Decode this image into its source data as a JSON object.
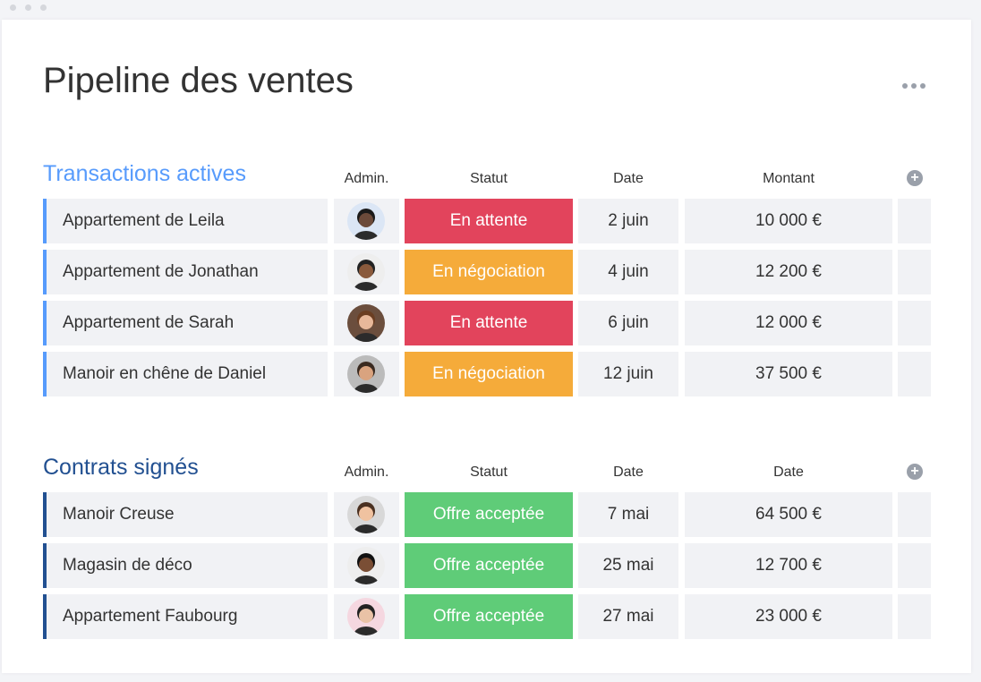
{
  "title": "Pipeline des ventes",
  "groups": [
    {
      "name": "Transactions actives",
      "color": "#579bfc",
      "columns": [
        "Admin.",
        "Statut",
        "Date",
        "Montant"
      ],
      "rows": [
        {
          "name": "Appartement de Leila",
          "status": "En attente",
          "status_color": "#e2445c",
          "date": "2 juin",
          "amount": "10 000 €"
        },
        {
          "name": "Appartement de Jonathan",
          "status": "En négociation",
          "status_color": "#f5ab3a",
          "date": "4 juin",
          "amount": "12 200 €"
        },
        {
          "name": "Appartement de Sarah",
          "status": "En attente",
          "status_color": "#e2445c",
          "date": "6 juin",
          "amount": "12 000 €"
        },
        {
          "name": "Manoir en chêne de Daniel",
          "status": "En négociation",
          "status_color": "#f5ab3a",
          "date": "12 juin",
          "amount": "37 500 €"
        }
      ]
    },
    {
      "name": "Contrats signés",
      "color": "#225091",
      "columns": [
        "Admin.",
        "Statut",
        "Date",
        "Date"
      ],
      "rows": [
        {
          "name": "Manoir Creuse",
          "status": "Offre acceptée",
          "status_color": "#5fcc78",
          "date": "7 mai",
          "amount": "64 500 €"
        },
        {
          "name": "Magasin de déco",
          "status": "Offre acceptée",
          "status_color": "#5fcc78",
          "date": "25 mai",
          "amount": "12 700 €"
        },
        {
          "name": "Appartement Faubourg",
          "status": "Offre acceptée",
          "status_color": "#5fcc78",
          "date": "27 mai",
          "amount": "23 000 €"
        }
      ]
    }
  ]
}
